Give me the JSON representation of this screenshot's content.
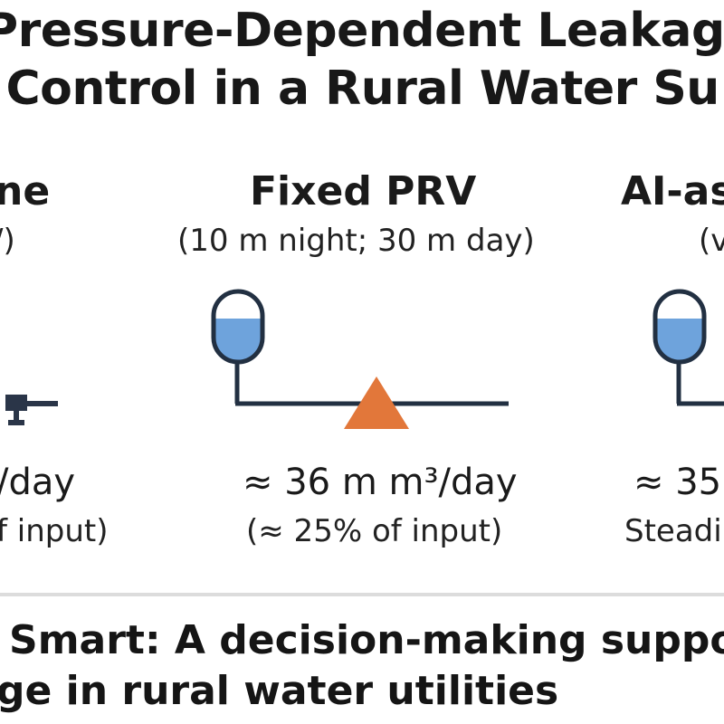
{
  "title": {
    "line1": "Pressure-Dependent Leakage",
    "line2": "I Control in a Rural Water Su"
  },
  "columns": {
    "left": {
      "title": "ne",
      "subtitle": "/)",
      "value": "/day",
      "note": "f input)"
    },
    "center": {
      "title": "Fixed PRV",
      "subtitle": "(10 m night; 30 m day)",
      "value": "≈ 36 m m³/day",
      "note": "(≈ 25% of input)"
    },
    "right": {
      "title": "AI-as",
      "subtitle": "(v",
      "value": "≈ 35",
      "note": "Steadi"
    }
  },
  "footer": {
    "line1": "Smart: A decision-making support",
    "line2": "ge in rural water utilities"
  },
  "colors": {
    "tank_fill": "#6ea3dc",
    "tank_stroke": "#223042",
    "pipe": "#223042",
    "valve_marker": "#e2773a",
    "pump": "#2a3548",
    "divider": "#dcdcdc"
  },
  "icons": {
    "left": "pump-icon",
    "center_tank": "water-tank-icon",
    "center_valve": "pressure-valve-icon",
    "right_tank": "water-tank-icon"
  }
}
